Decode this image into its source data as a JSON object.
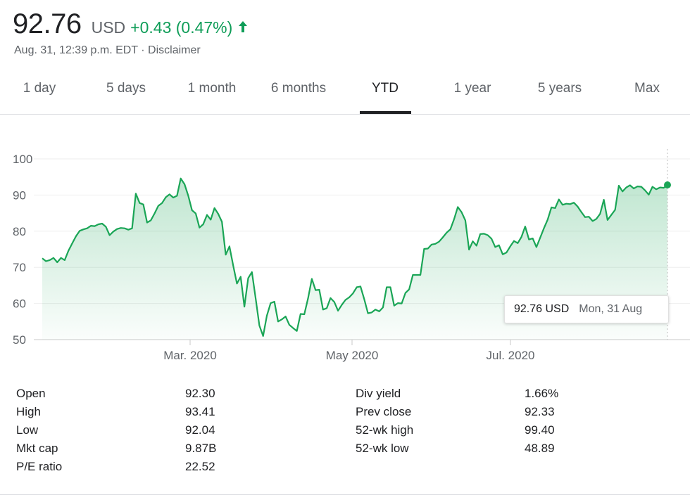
{
  "quote": {
    "price": "92.76",
    "currency": "USD",
    "change": "+0.43 (0.47%)",
    "timestamp": "Aug. 31, 12:39 p.m. EDT",
    "separator": " · ",
    "disclaimer": "Disclaimer"
  },
  "tabs": [
    {
      "label": "1 day",
      "active": false
    },
    {
      "label": "5 days",
      "active": false
    },
    {
      "label": "1 month",
      "active": false
    },
    {
      "label": "6 months",
      "active": false
    },
    {
      "label": "YTD",
      "active": true
    },
    {
      "label": "1 year",
      "active": false
    },
    {
      "label": "5 years",
      "active": false
    },
    {
      "label": "Max",
      "active": false
    }
  ],
  "colors": {
    "up": "#0f9d58",
    "line": "#1aa556",
    "grid": "#eeeeee",
    "text_secondary": "#5f6368"
  },
  "tooltip": {
    "value": "92.76 USD",
    "date": "Mon, 31 Aug"
  },
  "chart_data": {
    "type": "area",
    "y_ticks": [
      50,
      60,
      70,
      80,
      90,
      100
    ],
    "ylim": [
      50,
      100
    ],
    "x_ticks": [
      "Mar. 2020",
      "May 2020",
      "Jul. 2020"
    ],
    "grid": true,
    "series": [
      {
        "values": [
          72.5,
          71.7,
          72.0,
          72.6,
          71.4,
          72.6,
          72.0,
          74.6,
          76.6,
          78.6,
          80.1,
          80.5,
          80.8,
          81.5,
          81.4,
          81.9,
          82.1,
          81.2,
          78.9,
          79.9,
          80.6,
          80.9,
          80.8,
          80.4,
          80.8,
          90.4,
          87.8,
          87.4,
          82.4,
          83.0,
          84.9,
          87.0,
          87.8,
          89.4,
          90.2,
          89.3,
          89.8,
          94.6,
          93.0,
          89.8,
          85.8,
          84.9,
          81.0,
          81.9,
          84.5,
          83.2,
          86.4,
          84.8,
          82.6,
          73.5,
          75.8,
          70.5,
          65.5,
          67.4,
          59.1,
          67.0,
          68.7,
          61.4,
          53.9,
          51.0,
          56.6,
          60.1,
          60.5,
          55.0,
          55.6,
          56.4,
          54.1,
          53.2,
          52.4,
          57.1,
          57.0,
          61.4,
          66.8,
          63.7,
          63.8,
          58.3,
          58.7,
          61.5,
          60.4,
          58.0,
          59.6,
          61.0,
          61.7,
          62.8,
          64.5,
          64.7,
          61.2,
          57.3,
          57.5,
          58.3,
          57.8,
          58.9,
          64.5,
          64.5,
          59.4,
          60.1,
          60.0,
          62.9,
          63.9,
          67.9,
          67.9,
          67.9,
          75.1,
          75.2,
          76.3,
          76.5,
          77.1,
          78.3,
          79.6,
          80.5,
          83.3,
          86.7,
          85.3,
          83.0,
          74.9,
          77.2,
          76.0,
          79.2,
          79.3,
          78.9,
          77.9,
          75.6,
          76.1,
          73.6,
          74.1,
          75.8,
          77.3,
          76.7,
          78.4,
          81.3,
          77.7,
          78.0,
          75.6,
          78.2,
          80.8,
          83.2,
          86.6,
          86.4,
          88.8,
          87.3,
          87.6,
          87.5,
          87.9,
          86.8,
          85.3,
          83.9,
          84.0,
          82.8,
          83.4,
          84.8,
          88.7,
          83.1,
          84.5,
          85.9,
          92.6,
          91.0,
          92.1,
          92.7,
          91.8,
          92.4,
          92.3,
          91.3,
          90.1,
          92.3,
          91.6,
          92.1,
          92.0,
          92.8
        ]
      }
    ]
  },
  "stats": {
    "left": [
      {
        "label": "Open",
        "value": "92.30"
      },
      {
        "label": "High",
        "value": "93.41"
      },
      {
        "label": "Low",
        "value": "92.04"
      },
      {
        "label": "Mkt cap",
        "value": "9.87B"
      },
      {
        "label": "P/E ratio",
        "value": "22.52"
      }
    ],
    "right": [
      {
        "label": "Div yield",
        "value": "1.66%"
      },
      {
        "label": "Prev close",
        "value": "92.33"
      },
      {
        "label": "52-wk high",
        "value": "99.40"
      },
      {
        "label": "52-wk low",
        "value": "48.89"
      }
    ]
  }
}
